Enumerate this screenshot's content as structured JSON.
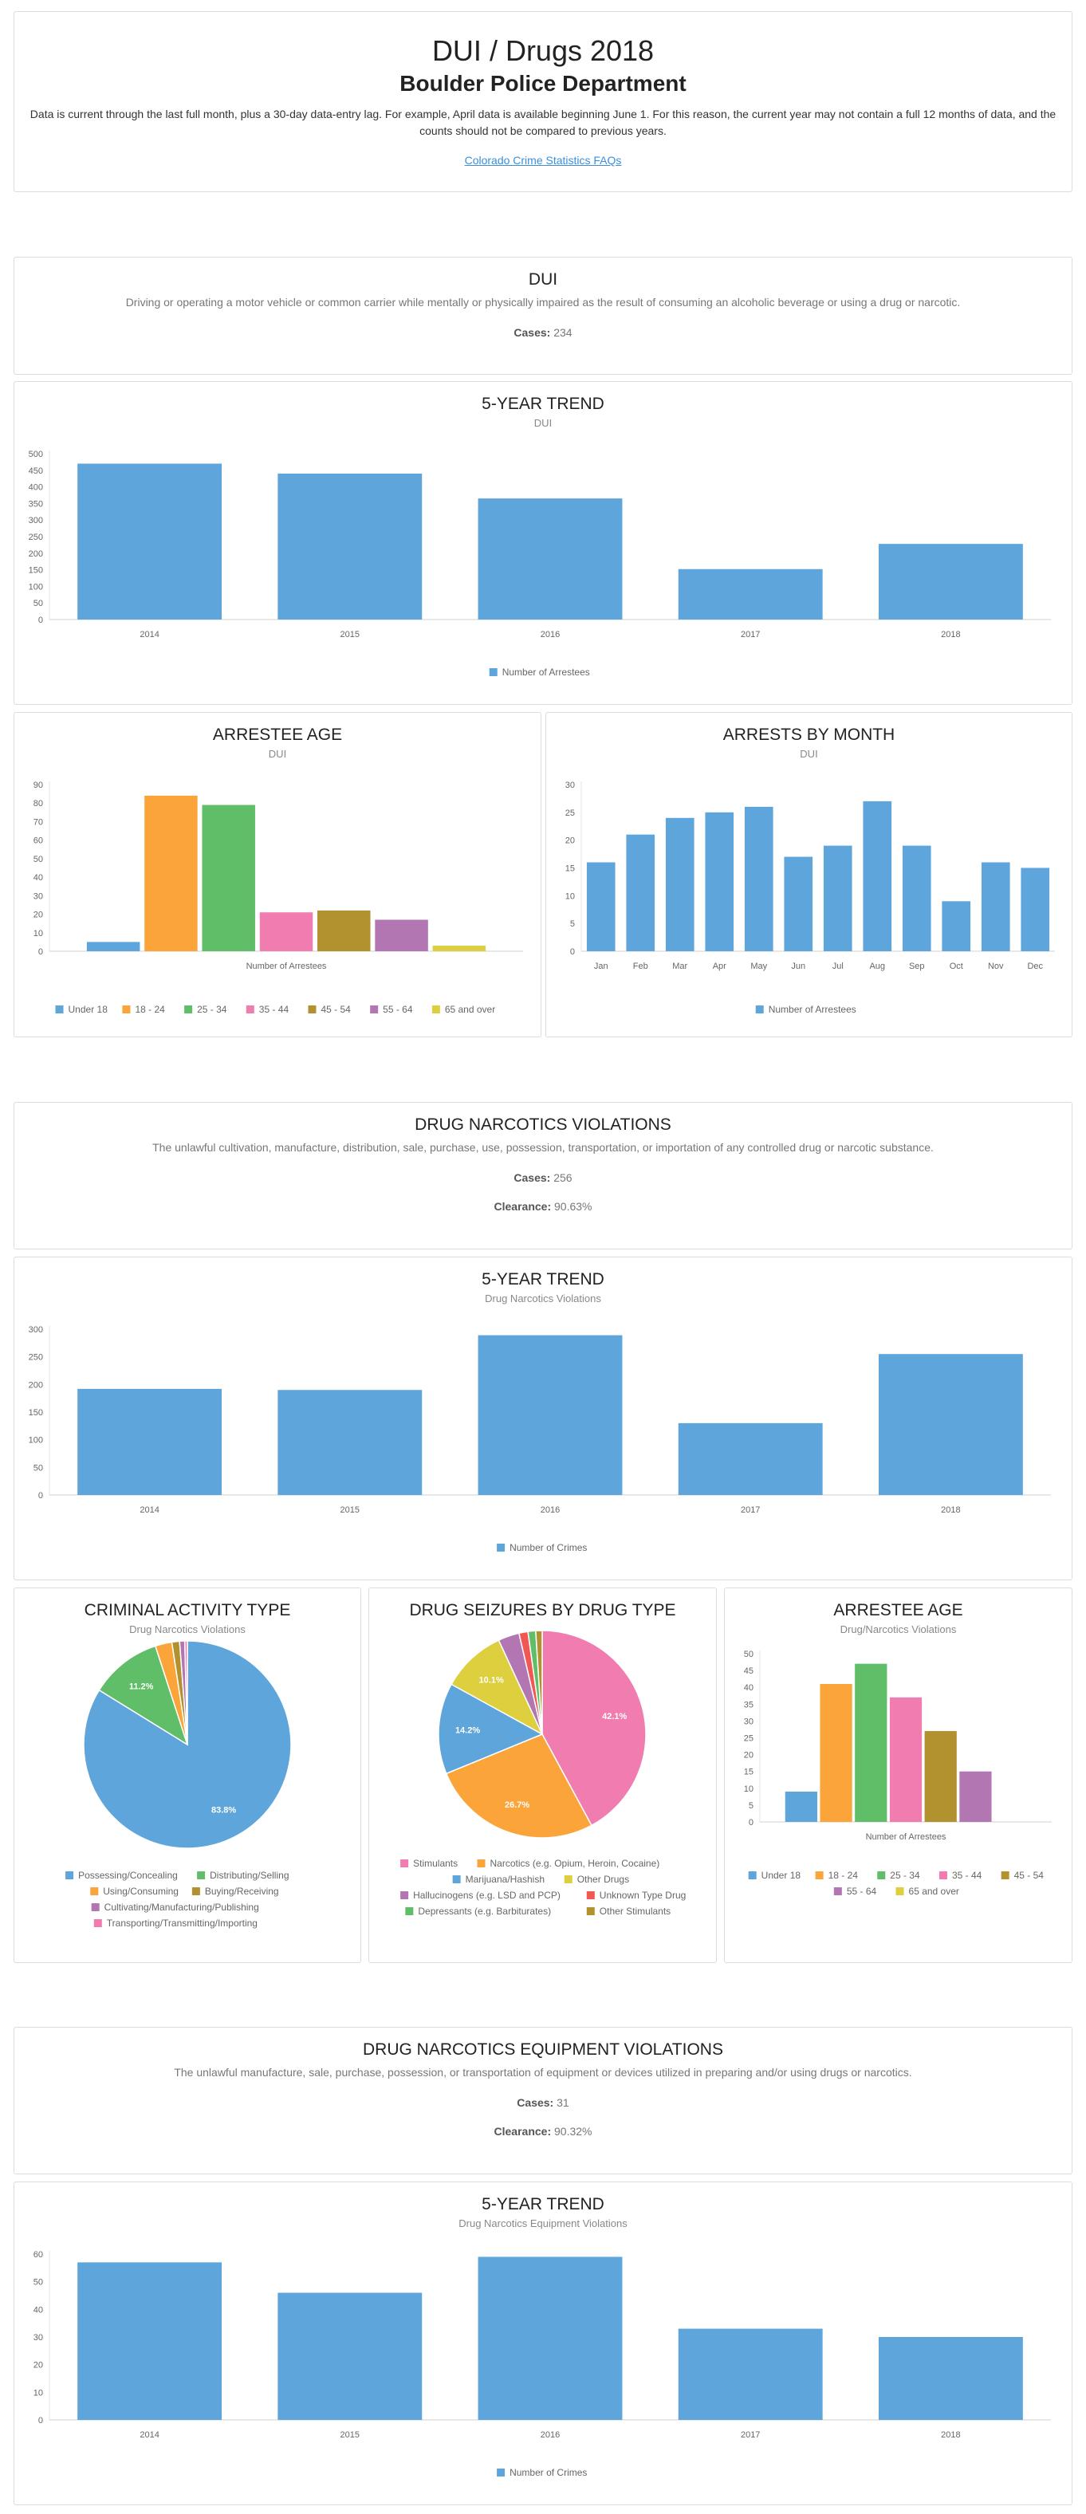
{
  "header": {
    "title": "DUI / Drugs 2018",
    "subtitle": "Boulder Police Department",
    "note": "Data is current through the last full month, plus a 30-day data-entry lag. For example, April data is available beginning June 1. For this reason, the current year may not contain a full 12 months of data, and the counts should not be compared to previous years.",
    "link": "Colorado Crime Statistics FAQs"
  },
  "dui": {
    "title": "DUI",
    "desc": "Driving or operating a motor vehicle or common carrier while mentally or physically impaired as the result of consuming an alcoholic beverage or using a drug or narcotic.",
    "cases_label": "Cases:",
    "cases_value": "234"
  },
  "drug": {
    "title": "DRUG NARCOTICS VIOLATIONS",
    "desc": "The unlawful cultivation, manufacture, distribution, sale, purchase, use, possession, transportation, or importation of any controlled drug or narcotic substance.",
    "cases_label": "Cases:",
    "cases_value": "256",
    "clearance_label": "Clearance:",
    "clearance_value": "90.63%"
  },
  "equip": {
    "title": "DRUG NARCOTICS EQUIPMENT VIOLATIONS",
    "desc": "The unlawful manufacture, sale, purchase, possession, or transportation of equipment or devices utilized in preparing and/or using drugs or narcotics.",
    "cases_label": "Cases:",
    "cases_value": "31",
    "clearance_label": "Clearance:",
    "clearance_value": "90.32%"
  },
  "colors": {
    "blue": "#5da5da",
    "orange": "#faa43a",
    "green": "#60bd68",
    "pink": "#f17cb0",
    "olive": "#b2912f",
    "purple": "#b276b2",
    "yellow": "#decf3f",
    "red": "#f15854",
    "axis": "#666666",
    "grid": "#e6e6e6"
  },
  "chart_data": [
    {
      "id": "dui_trend",
      "type": "bar",
      "title": "5-YEAR TREND",
      "subtitle": "DUI",
      "categories": [
        "2014",
        "2015",
        "2016",
        "2017",
        "2018"
      ],
      "series": [
        {
          "name": "Number of Arrestees",
          "values": [
            470,
            440,
            365,
            152,
            228
          ]
        }
      ],
      "ylim": [
        0,
        500
      ],
      "yticks": [
        0,
        50,
        100,
        150,
        200,
        250,
        300,
        350,
        400,
        450,
        500
      ],
      "legend": "bottom"
    },
    {
      "id": "dui_age",
      "type": "bar",
      "title": "ARRESTEE AGE",
      "subtitle": "DUI",
      "xlabel": "Number of Arrestees",
      "series": [
        {
          "name": "Under 18",
          "values": [
            5
          ]
        },
        {
          "name": "18 - 24",
          "values": [
            84
          ]
        },
        {
          "name": "25 - 34",
          "values": [
            79
          ]
        },
        {
          "name": "35 - 44",
          "values": [
            21
          ]
        },
        {
          "name": "45 - 54",
          "values": [
            22
          ]
        },
        {
          "name": "55 - 64",
          "values": [
            17
          ]
        },
        {
          "name": "65 and over",
          "values": [
            3
          ]
        }
      ],
      "ylim": [
        0,
        90
      ],
      "yticks": [
        0,
        10,
        20,
        30,
        40,
        50,
        60,
        70,
        80,
        90
      ],
      "legend": "bottom"
    },
    {
      "id": "dui_month",
      "type": "bar",
      "title": "ARRESTS BY MONTH",
      "subtitle": "DUI",
      "categories": [
        "Jan",
        "Feb",
        "Mar",
        "Apr",
        "May",
        "Jun",
        "Jul",
        "Aug",
        "Sep",
        "Oct",
        "Nov",
        "Dec"
      ],
      "series": [
        {
          "name": "Number of Arrestees",
          "values": [
            16,
            21,
            24,
            25,
            26,
            17,
            19,
            27,
            19,
            9,
            16,
            15
          ]
        }
      ],
      "ylim": [
        0,
        30
      ],
      "yticks": [
        0,
        5,
        10,
        15,
        20,
        25,
        30
      ],
      "legend": "bottom"
    },
    {
      "id": "drug_trend",
      "type": "bar",
      "title": "5-YEAR TREND",
      "subtitle": "Drug Narcotics Violations",
      "categories": [
        "2014",
        "2015",
        "2016",
        "2017",
        "2018"
      ],
      "series": [
        {
          "name": "Number of Crimes",
          "values": [
            192,
            190,
            289,
            130,
            255
          ]
        }
      ],
      "ylim": [
        0,
        300
      ],
      "yticks": [
        0,
        50,
        100,
        150,
        200,
        250,
        300
      ],
      "legend": "bottom"
    },
    {
      "id": "activity",
      "type": "pie",
      "title": "CRIMINAL ACTIVITY TYPE",
      "subtitle": "Drug Narcotics Violations",
      "labels": [
        "Possessing/Concealing",
        "Distributing/Selling",
        "Using/Consuming",
        "Buying/Receiving",
        "Cultivating/Manufacturing/Publishing",
        "Transporting/Transmitting/Importing"
      ],
      "values": [
        83.8,
        11.2,
        2.6,
        1.2,
        0.8,
        0.4
      ],
      "value_labels": [
        "83.8%",
        "11.2%",
        "",
        "",
        "",
        ""
      ],
      "legend": "bottom"
    },
    {
      "id": "seizures",
      "type": "pie",
      "title": "DRUG SEIZURES BY DRUG TYPE",
      "subtitle": "",
      "labels": [
        "Stimulants",
        "Narcotics (e.g. Opium, Heroin, Cocaine)",
        "Marijuana/Hashish",
        "Other Drugs",
        "Hallucinogens (e.g. LSD and PCP)",
        "Unknown Type Drug",
        "Depressants (e.g. Barbiturates)",
        "Other Stimulants"
      ],
      "values": [
        42.1,
        26.7,
        14.2,
        10.1,
        3.3,
        1.4,
        1.2,
        1.0
      ],
      "value_labels": [
        "42.1%",
        "26.7%",
        "14.2%",
        "10.1%",
        "",
        "",
        "",
        ""
      ],
      "legend": "bottom"
    },
    {
      "id": "drug_age",
      "type": "bar",
      "title": "ARRESTEE AGE",
      "subtitle": "Drug/Narcotics Violations",
      "xlabel": "Number of Arrestees",
      "series": [
        {
          "name": "Under 18",
          "values": [
            9
          ]
        },
        {
          "name": "18 - 24",
          "values": [
            41
          ]
        },
        {
          "name": "25 - 34",
          "values": [
            47
          ]
        },
        {
          "name": "35 - 44",
          "values": [
            37
          ]
        },
        {
          "name": "45 - 54",
          "values": [
            27
          ]
        },
        {
          "name": "55 - 64",
          "values": [
            15
          ]
        },
        {
          "name": "65 and over",
          "values": [
            0
          ]
        }
      ],
      "ylim": [
        0,
        50
      ],
      "yticks": [
        0,
        5,
        10,
        15,
        20,
        25,
        30,
        35,
        40,
        45,
        50
      ],
      "legend": "bottom"
    },
    {
      "id": "equip_trend",
      "type": "bar",
      "title": "5-YEAR TREND",
      "subtitle": "Drug Narcotics Equipment Violations",
      "categories": [
        "2014",
        "2015",
        "2016",
        "2017",
        "2018"
      ],
      "series": [
        {
          "name": "Number of Crimes",
          "values": [
            57,
            46,
            59,
            33,
            30
          ]
        }
      ],
      "ylim": [
        0,
        60
      ],
      "yticks": [
        0,
        10,
        20,
        30,
        40,
        50,
        60
      ],
      "legend": "bottom"
    }
  ]
}
